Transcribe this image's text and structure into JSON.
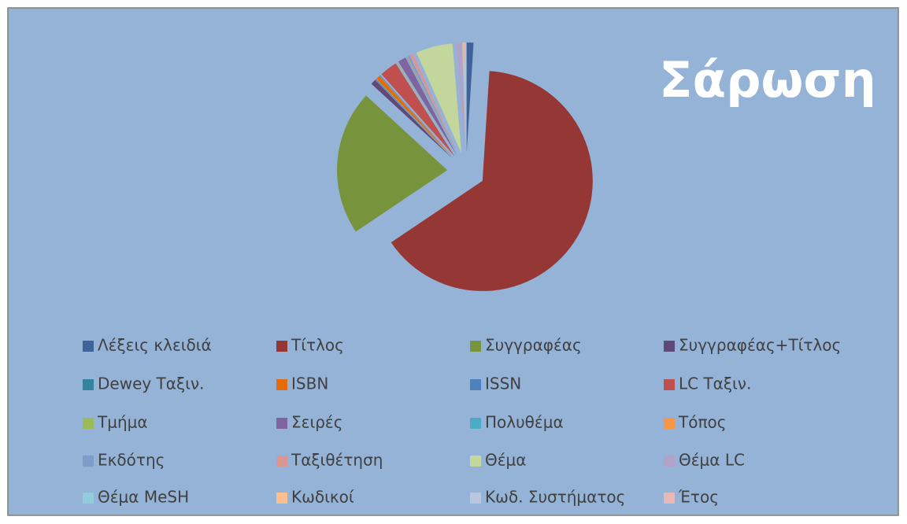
{
  "chart_data": {
    "type": "pie",
    "title": "Σάρωση",
    "categories": [
      "Λέξεις κλειδιά",
      "Τίτλος",
      "Συγγραφέας",
      "Συγγραφέας+Τίτλος",
      "Dewey Ταξιν.",
      "ISBN",
      "ISSN",
      "LC Ταξιν.",
      "Τμήμα",
      "Σειρές",
      "Πολυθέμα",
      "Τόπος",
      "Εκδότης",
      "Ταξιθέτηση",
      "Θέμα",
      "Θέμα LC",
      "Θέμα MeSH",
      "Κωδικοί",
      "Κωδ. Συστήματος",
      "Έτος"
    ],
    "values": [
      1.0,
      64.7,
      21.3,
      0.8,
      0.1,
      0.6,
      0.1,
      2.6,
      0.1,
      1.2,
      0.1,
      0.1,
      0.3,
      0.5,
      5.4,
      0.8,
      0.1,
      0.1,
      0.1,
      0.2
    ],
    "colors": [
      "#3F6397",
      "#953735",
      "#77933C",
      "#5F497A",
      "#31859C",
      "#E46C0A",
      "#4F81BD",
      "#C0504D",
      "#9BBB59",
      "#8064A2",
      "#4BACC6",
      "#F79646",
      "#7F9BC8",
      "#D99694",
      "#C3D69B",
      "#B3A2C7",
      "#93CDDD",
      "#FAC090",
      "#B9C6E0",
      "#E6B9B8"
    ],
    "legend": "bottom"
  }
}
